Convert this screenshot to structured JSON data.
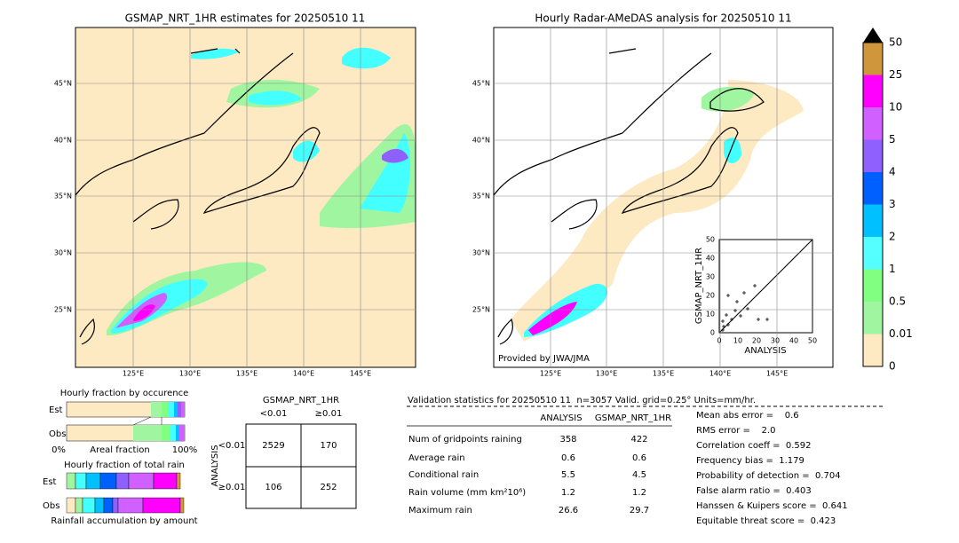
{
  "left_map": {
    "title": "GSMAP_NRT_1HR estimates for 20250510 11",
    "lat_labels": [
      "45°N",
      "40°N",
      "35°N",
      "30°N",
      "25°N"
    ],
    "lon_labels": [
      "125°E",
      "130°E",
      "135°E",
      "140°E",
      "145°E"
    ]
  },
  "right_map": {
    "title": "Hourly Radar-AMeDAS analysis for 20250510 11",
    "lat_labels": [
      "45°N",
      "40°N",
      "35°N",
      "30°N",
      "25°N"
    ],
    "lon_labels": [
      "125°E",
      "130°E",
      "135°E",
      "140°E",
      "145°E"
    ],
    "credit": "Provided by JWA/JMA",
    "inset": {
      "ylabel": "GSMAP_NRT_1HR",
      "xlabel": "ANALYSIS",
      "ticks": [
        "0",
        "10",
        "20",
        "30",
        "40",
        "50"
      ]
    }
  },
  "colorbar": {
    "labels": [
      "0",
      "0.01",
      "0.5",
      "1",
      "2",
      "3",
      "4",
      "5",
      "10",
      "25",
      "50"
    ]
  },
  "occurrence": {
    "title": "Hourly fraction by occurence",
    "rows": [
      "Est",
      "Obs"
    ],
    "axis": [
      "0%",
      "Areal fraction",
      "100%"
    ]
  },
  "total_rain": {
    "title": "Hourly fraction of total rain",
    "rows": [
      "Est",
      "Obs"
    ],
    "footer": "Rainfall accumulation by amount"
  },
  "contingency": {
    "title": "GSMAP_NRT_1HR",
    "cols": [
      "<0.01",
      "≥0.01"
    ],
    "side": "ANALYSIS",
    "rows": [
      {
        "label": "<0.01",
        "cells": [
          "2529",
          "170"
        ]
      },
      {
        "label": "≥0.01",
        "cells": [
          "106",
          "252"
        ]
      }
    ]
  },
  "validation": {
    "header": "Validation statistics for 20250510 11  n=3057 Valid. grid=0.25° Units=mm/hr.",
    "columns": [
      "ANALYSIS",
      "GSMAP_NRT_1HR"
    ],
    "rows": [
      [
        "Num of gridpoints raining",
        "358",
        "422"
      ],
      [
        "Average rain",
        "0.6",
        "0.6"
      ],
      [
        "Conditional rain",
        "5.5",
        "4.5"
      ],
      [
        "Rain volume (mm km²10⁶)",
        "1.2",
        "1.2"
      ],
      [
        "Maximum rain",
        "26.6",
        "29.7"
      ]
    ],
    "scores": [
      "Mean abs error =    0.6",
      "RMS error =    2.0",
      "Correlation coeff =  0.592",
      "Frequency bias =  1.179",
      "Probability of detection =  0.704",
      "False alarm ratio =  0.403",
      "Hanssen & Kuipers score =  0.641",
      "Equitable threat score =  0.423"
    ]
  }
}
